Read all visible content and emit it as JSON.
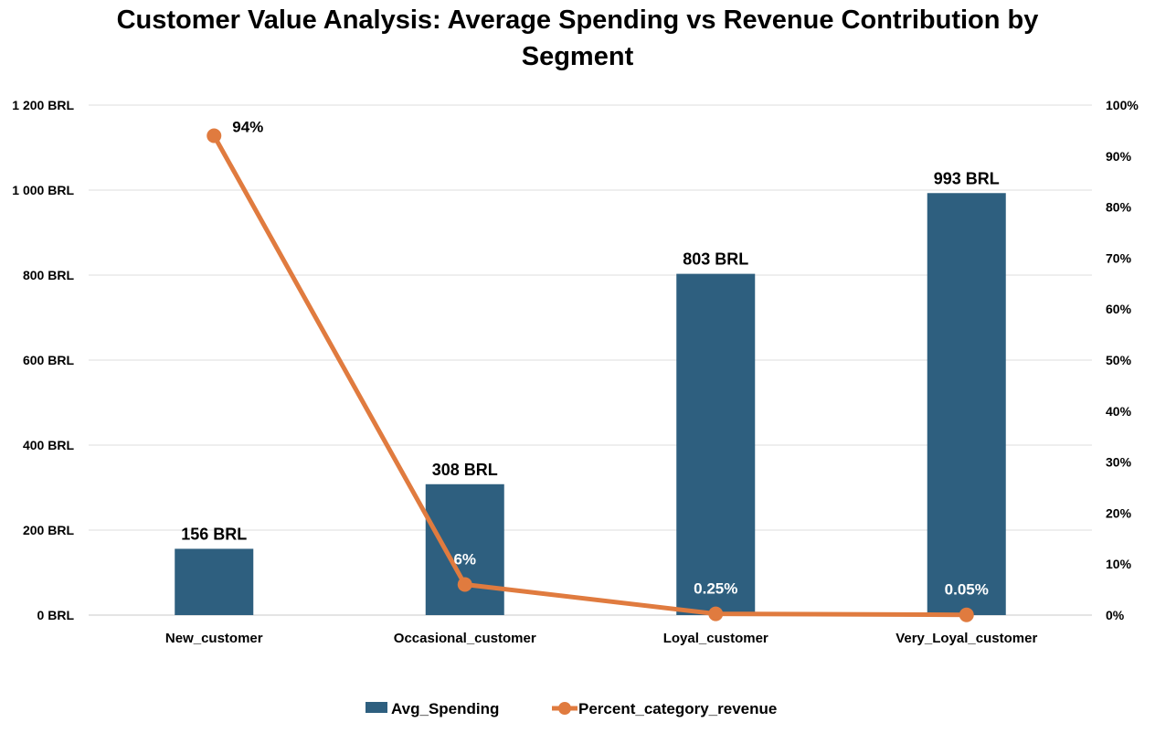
{
  "chart_data": {
    "type": "bar",
    "title": "Customer Value Analysis: Average Spending vs Revenue Contribution by Segment",
    "categories": [
      "New_customer",
      "Occasional_customer",
      "Loyal_customer",
      "Very_Loyal_customer"
    ],
    "series": [
      {
        "name": "Avg_Spending",
        "type": "bar",
        "axis": "left",
        "values": [
          156,
          308,
          803,
          993
        ],
        "labels": [
          "156 BRL",
          "308 BRL",
          "803 BRL",
          "993 BRL"
        ],
        "color": "#2E5F7F"
      },
      {
        "name": "Percent_category_revenue",
        "type": "line",
        "axis": "right",
        "values": [
          94,
          6,
          0.25,
          0.05
        ],
        "labels": [
          "94%",
          "6%",
          "0.25%",
          "0.05%"
        ],
        "color": "#E07B3F"
      }
    ],
    "y_left": {
      "ylim": [
        0,
        1200
      ],
      "ticks": [
        0,
        200,
        400,
        600,
        800,
        1000,
        1200
      ],
      "tick_labels": [
        "0 BRL",
        "200 BRL",
        "400 BRL",
        "600 BRL",
        "800 BRL",
        "1 000 BRL",
        "1 200 BRL"
      ]
    },
    "y_right": {
      "ylim": [
        0,
        100
      ],
      "ticks": [
        0,
        10,
        20,
        30,
        40,
        50,
        60,
        70,
        80,
        90,
        100
      ],
      "tick_labels": [
        "0%",
        "10%",
        "20%",
        "30%",
        "40%",
        "50%",
        "60%",
        "70%",
        "80%",
        "90%",
        "100%"
      ]
    },
    "grid": true,
    "legend": "bottom"
  }
}
